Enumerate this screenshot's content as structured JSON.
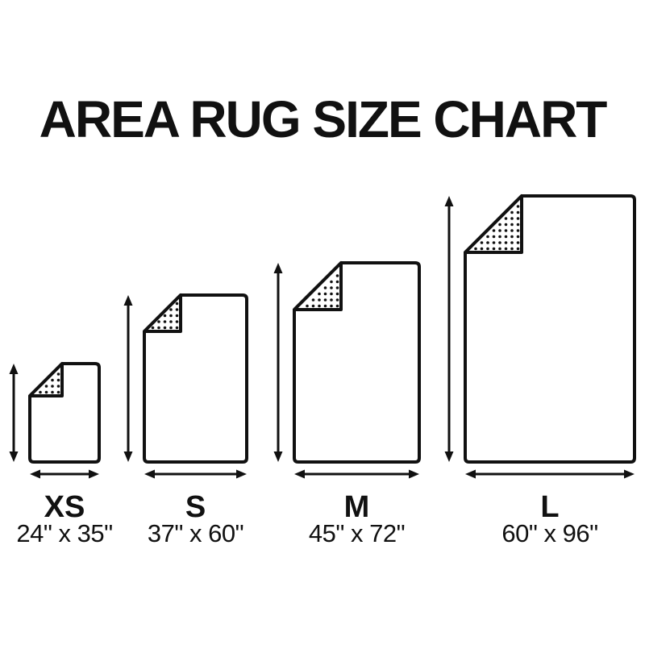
{
  "title": "AREA RUG SIZE CHART",
  "chart_data": {
    "type": "diagram",
    "subject": "area rug size comparison",
    "unit": "inches",
    "sizes": [
      {
        "label": "XS",
        "dimensions": "24\" x 35\"",
        "width_in": 24,
        "length_in": 35
      },
      {
        "label": "S",
        "dimensions": "37\" x 60\"",
        "width_in": 37,
        "length_in": 60
      },
      {
        "label": "M",
        "dimensions": "45\" x 72\"",
        "width_in": 45,
        "length_in": 72
      },
      {
        "label": "L",
        "dimensions": "60\" x 96\"",
        "width_in": 60,
        "length_in": 96
      }
    ]
  },
  "colors": {
    "ink": "#111111",
    "background": "#ffffff"
  }
}
